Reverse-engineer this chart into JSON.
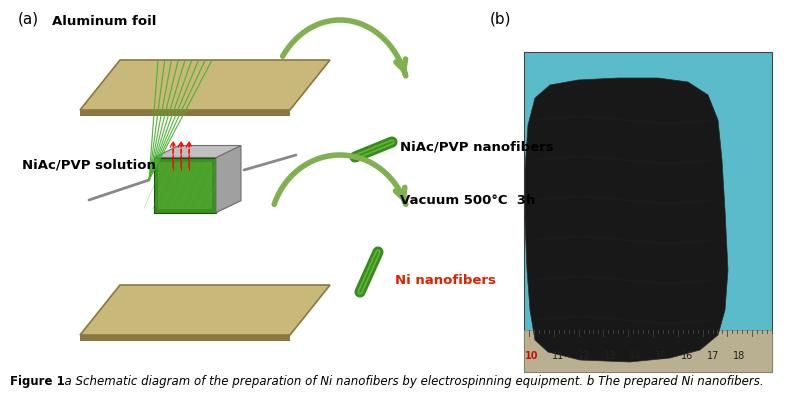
{
  "figure_caption_bold": "Figure 1",
  "figure_caption_rest": "  a Schematic diagram of the preparation of Ni nanofibers by electrospinning equipment. b The prepared Ni nanofibers.",
  "panel_a_label": "(a)",
  "panel_b_label": "(b)",
  "label_aluminum_foil": "Aluminum foil",
  "label_niac_pvp": "NiAc/PVP solution",
  "label_niac_pvp_nano": "NiAc/PVP nanofibers",
  "label_vacuum": "Vacuum 500°C  3h",
  "label_ni_nano": "Ni nanofibers",
  "bg_color": "#ffffff",
  "foil_color": "#c8b87a",
  "foil_edge_color": "#9a8850",
  "foil_shadow": "#8a7840",
  "collector_front_gray": "#a0a0a0",
  "collector_side_gray": "#888888",
  "collector_top_gray": "#c0c0c0",
  "collector_dark_gray": "#707070",
  "green_fiber_color": "#2a7a10",
  "green_front_color": "#3a9020",
  "green_light_color": "#70c040",
  "arrow_color_outer": "#a0cc70",
  "arrow_color_inner": "#80b050",
  "ni_nano_color": "#dd2200",
  "ruler_bg": "#b8b090",
  "ruler_text": "#222222",
  "ruler_red": "#cc1100",
  "photo_bg": "#5abcca",
  "fabric_color": "#181818",
  "caption_fontsize": 8.5,
  "label_fontsize": 9.5
}
